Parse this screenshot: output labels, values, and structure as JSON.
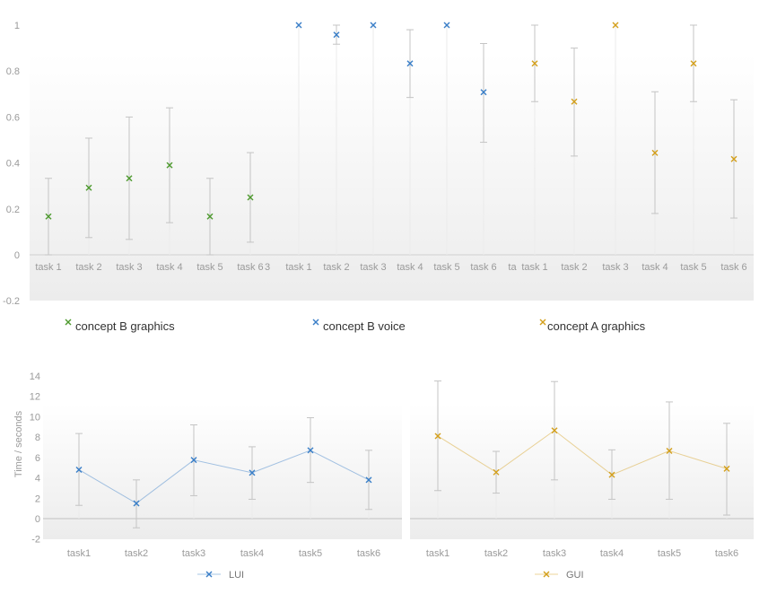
{
  "chart_data": [
    {
      "type": "scatter",
      "error_bars": true,
      "ylim": [
        -0.2,
        1
      ],
      "y_ticks": [
        "1",
        "0.8",
        "0.6",
        "0.4",
        "0.2",
        "0",
        "-0.2"
      ],
      "extra_tick_labels": [
        "3",
        "ta"
      ],
      "legend_position": "bottom",
      "grid": false,
      "series": [
        {
          "name": "concept B graphics",
          "color": "#4e9a2f",
          "categories": [
            "task 1",
            "task 2",
            "task 3",
            "task 4",
            "task 5",
            "task 6"
          ],
          "values": [
            0.167,
            0.292,
            0.333,
            0.39,
            0.167,
            0.25
          ],
          "low": [
            0,
            0.075,
            0.067,
            0.14,
            0,
            0.055
          ],
          "high": [
            0.333,
            0.508,
            0.6,
            0.64,
            0.333,
            0.445
          ]
        },
        {
          "name": "concept B voice",
          "color": "#3a7fc8",
          "categories": [
            "task 1",
            "task 2",
            "task 3",
            "task 4",
            "task 5",
            "task 6"
          ],
          "values": [
            1.0,
            0.958,
            1.0,
            0.833,
            1.0,
            0.708
          ],
          "low": [
            1.0,
            0.917,
            1.0,
            0.685,
            1.0,
            0.49
          ],
          "high": [
            1.0,
            1.0,
            1.0,
            0.98,
            1.0,
            0.92
          ]
        },
        {
          "name": "concept A graphics",
          "color": "#d4a01c",
          "categories": [
            "task 1",
            "task 2",
            "task 3",
            "task 4",
            "task 5",
            "task 6"
          ],
          "values": [
            0.833,
            0.667,
            1.0,
            0.444,
            0.833,
            0.417
          ],
          "low": [
            0.667,
            0.43,
            1.0,
            0.18,
            0.667,
            0.16
          ],
          "high": [
            1.0,
            0.9,
            1.0,
            0.71,
            1.0,
            0.675
          ]
        }
      ]
    },
    {
      "type": "line",
      "error_bars": true,
      "ylabel": "Time / seconds",
      "ylim": [
        -2,
        14
      ],
      "y_ticks": [
        "14",
        "12",
        "10",
        "8",
        "6",
        "4",
        "2",
        "0",
        "-2"
      ],
      "categories": [
        "task1",
        "task2",
        "task3",
        "task4",
        "task5",
        "task6"
      ],
      "legend_position": "bottom",
      "series": [
        {
          "name": "LUI",
          "color": "#3a7fc8",
          "values": [
            4.8,
            1.5,
            5.75,
            4.5,
            6.7,
            3.8
          ],
          "low": [
            1.3,
            -0.9,
            2.25,
            1.9,
            3.55,
            0.9
          ],
          "high": [
            8.35,
            3.8,
            9.2,
            7.05,
            9.9,
            6.7
          ]
        }
      ]
    },
    {
      "type": "line",
      "error_bars": true,
      "ylim": [
        -2,
        14
      ],
      "categories": [
        "task1",
        "task2",
        "task3",
        "task4",
        "task5",
        "task6"
      ],
      "legend_position": "bottom",
      "series": [
        {
          "name": "GUI",
          "color": "#d4a01c",
          "values": [
            8.1,
            4.55,
            8.65,
            4.3,
            6.65,
            4.9
          ],
          "low": [
            2.75,
            2.5,
            3.8,
            1.9,
            1.9,
            0.35
          ],
          "high": [
            13.5,
            6.6,
            13.45,
            6.75,
            11.45,
            9.35
          ]
        }
      ]
    }
  ]
}
